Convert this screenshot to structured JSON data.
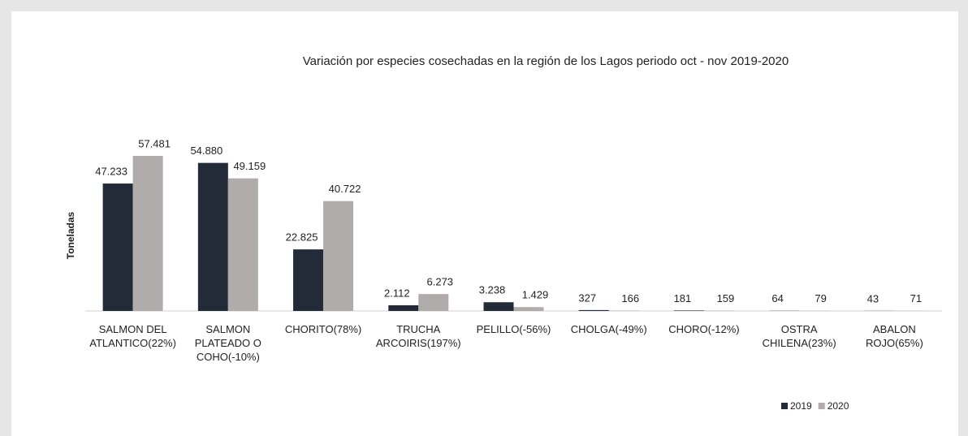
{
  "chart_data": {
    "type": "bar",
    "title": "Variación por especies cosechadas en la región de los Lagos periodo oct - nov 2019-2020",
    "y_label": "Toneladas",
    "categories": [
      "SALMON DEL ATLANTICO(22%)",
      "SALMON PLATEADO O COHO(-10%)",
      "CHORITO(78%)",
      "TRUCHA ARCOIRIS(197%)",
      "PELILLO(-56%)",
      "CHOLGA(-49%)",
      "CHORO(-12%)",
      "OSTRA CHILENA(23%)",
      "ABALON ROJO(65%)"
    ],
    "series": [
      {
        "name": "2019",
        "color": "#232b38",
        "values": [
          47233,
          54880,
          22825,
          2112,
          3238,
          327,
          181,
          64,
          43
        ],
        "value_labels": [
          "47.233",
          "54.880",
          "22.825",
          "2.112",
          "3.238",
          "327",
          "181",
          "64",
          "43"
        ]
      },
      {
        "name": "2020",
        "color": "#b0acac",
        "values": [
          57481,
          49159,
          40722,
          6273,
          1429,
          166,
          159,
          79,
          71
        ],
        "value_labels": [
          "57.481",
          "49.159",
          "40.722",
          "6.273",
          "1.429",
          "166",
          "159",
          "79",
          "71"
        ]
      }
    ],
    "legend": "bottom-right"
  }
}
